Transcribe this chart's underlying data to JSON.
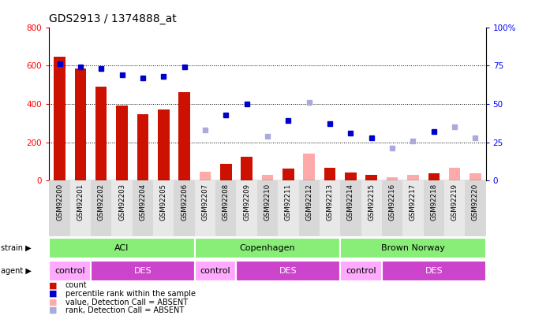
{
  "title": "GDS2913 / 1374888_at",
  "samples": [
    "GSM92200",
    "GSM92201",
    "GSM92202",
    "GSM92203",
    "GSM92204",
    "GSM92205",
    "GSM92206",
    "GSM92207",
    "GSM92208",
    "GSM92209",
    "GSM92210",
    "GSM92211",
    "GSM92212",
    "GSM92213",
    "GSM92214",
    "GSM92215",
    "GSM92216",
    "GSM92217",
    "GSM92218",
    "GSM92219",
    "GSM92220"
  ],
  "count_values": [
    645,
    585,
    490,
    390,
    348,
    370,
    460,
    45,
    88,
    125,
    30,
    62,
    140,
    65,
    42,
    28,
    18,
    28,
    38,
    65,
    40
  ],
  "count_absent": [
    false,
    false,
    false,
    false,
    false,
    false,
    false,
    true,
    false,
    false,
    true,
    false,
    true,
    false,
    false,
    false,
    true,
    true,
    false,
    true,
    true
  ],
  "rank_values": [
    76,
    74,
    73,
    69,
    67,
    68,
    74,
    33,
    43,
    50,
    29,
    39,
    51,
    37,
    31,
    28,
    21,
    26,
    32,
    35,
    28
  ],
  "rank_absent": [
    false,
    false,
    false,
    false,
    false,
    false,
    false,
    true,
    false,
    false,
    true,
    false,
    true,
    false,
    false,
    false,
    true,
    true,
    false,
    true,
    true
  ],
  "strains": [
    {
      "label": "ACI",
      "start": 0,
      "end": 6
    },
    {
      "label": "Copenhagen",
      "start": 7,
      "end": 13
    },
    {
      "label": "Brown Norway",
      "start": 14,
      "end": 20
    }
  ],
  "agents": [
    {
      "label": "control",
      "start": 0,
      "end": 1
    },
    {
      "label": "DES",
      "start": 2,
      "end": 6
    },
    {
      "label": "control",
      "start": 7,
      "end": 8
    },
    {
      "label": "DES",
      "start": 9,
      "end": 13
    },
    {
      "label": "control",
      "start": 14,
      "end": 15
    },
    {
      "label": "DES",
      "start": 16,
      "end": 20
    }
  ],
  "ylim_left": [
    0,
    800
  ],
  "ylim_right": [
    0,
    100
  ],
  "yticks_left": [
    0,
    200,
    400,
    600,
    800
  ],
  "yticks_right": [
    0,
    25,
    50,
    75,
    100
  ],
  "color_count_present": "#cc1100",
  "color_count_absent": "#ffaaaa",
  "color_rank_present": "#0000cc",
  "color_rank_absent": "#aaaadd",
  "color_strain_bg": "#88ee77",
  "color_control_bg": "#ffaaff",
  "color_des_bg": "#cc44cc",
  "grid_yticks": [
    200,
    400,
    600
  ],
  "col_bg_even": "#d8d8d8",
  "col_bg_odd": "#e8e8e8"
}
